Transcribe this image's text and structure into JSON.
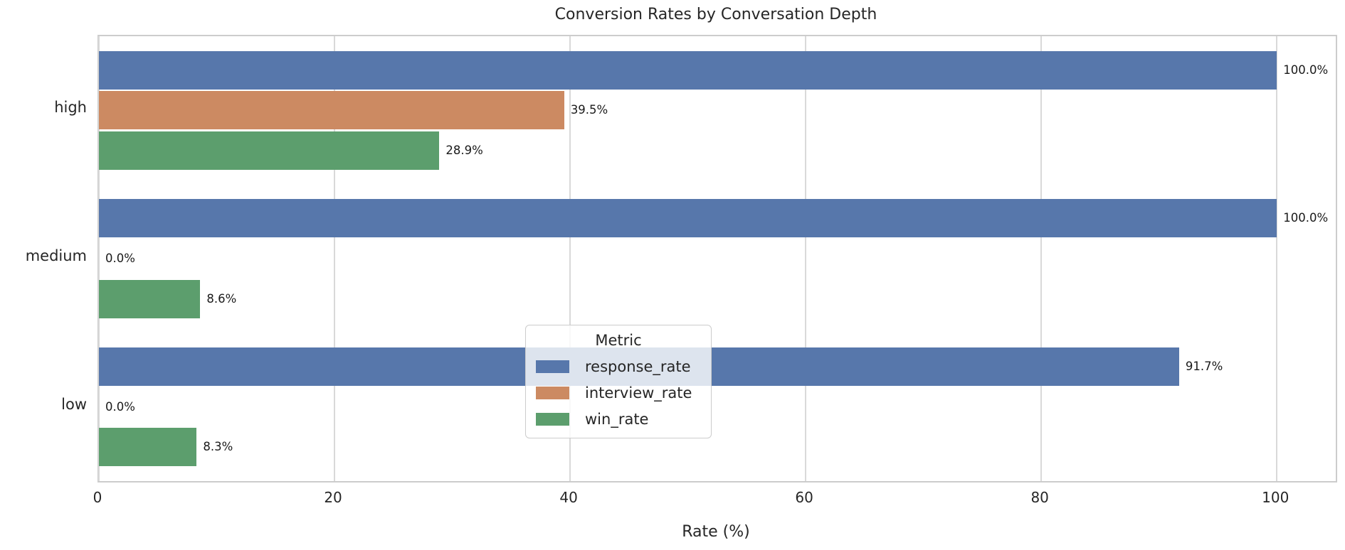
{
  "chart_data": {
    "type": "bar",
    "orientation": "horizontal",
    "title": "Conversion Rates by Conversation Depth",
    "xlabel": "Rate (%)",
    "ylabel": "",
    "categories": [
      "high",
      "medium",
      "low"
    ],
    "series": [
      {
        "name": "response_rate",
        "color": "#5777AB",
        "values": [
          100.0,
          100.0,
          91.7
        ]
      },
      {
        "name": "interview_rate",
        "color": "#CC8A62",
        "values": [
          39.5,
          0.0,
          0.0
        ]
      },
      {
        "name": "win_rate",
        "color": "#5C9E6D",
        "values": [
          28.9,
          8.6,
          8.3
        ]
      }
    ],
    "value_labels": [
      [
        "100.0%",
        "100.0%",
        "91.7%"
      ],
      [
        "39.5%",
        "0.0%",
        "0.0%"
      ],
      [
        "28.9%",
        "8.6%",
        "8.3%"
      ]
    ],
    "xlim": [
      0,
      105
    ],
    "xticks": [
      0,
      20,
      40,
      60,
      80,
      100
    ],
    "grid": true,
    "grid_color": "#d9d9d9",
    "spine_color": "#cccccc",
    "legend": {
      "title": "Metric",
      "position": "lower-center",
      "background": "rgba(255,255,255,0.8)"
    }
  }
}
